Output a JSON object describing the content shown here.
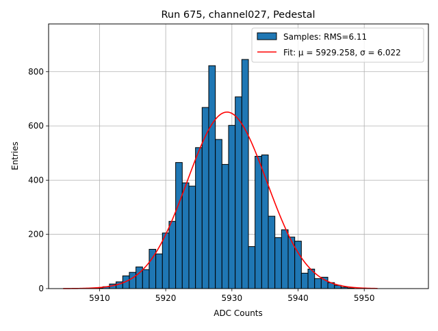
{
  "chart_data": {
    "type": "bar",
    "title": "Run 675, channel027, Pedestal",
    "xlabel": "ADC Counts",
    "ylabel": "Entries",
    "xlim": [
      5902.3,
      5959.7
    ],
    "ylim": [
      0,
      976
    ],
    "x_ticks": [
      5910,
      5920,
      5930,
      5940,
      5950
    ],
    "y_ticks": [
      0,
      200,
      400,
      600,
      800
    ],
    "grid": true,
    "legend_placement": "top-right",
    "bin_width": 1,
    "bins": [
      {
        "x": 5910,
        "value": 2
      },
      {
        "x": 5911,
        "value": 7
      },
      {
        "x": 5912,
        "value": 17
      },
      {
        "x": 5913,
        "value": 25
      },
      {
        "x": 5914,
        "value": 47
      },
      {
        "x": 5915,
        "value": 60
      },
      {
        "x": 5916,
        "value": 80
      },
      {
        "x": 5917,
        "value": 70
      },
      {
        "x": 5918,
        "value": 145
      },
      {
        "x": 5919,
        "value": 128
      },
      {
        "x": 5920,
        "value": 205
      },
      {
        "x": 5921,
        "value": 248
      },
      {
        "x": 5922,
        "value": 465
      },
      {
        "x": 5923,
        "value": 390
      },
      {
        "x": 5924,
        "value": 378
      },
      {
        "x": 5925,
        "value": 520
      },
      {
        "x": 5926,
        "value": 668
      },
      {
        "x": 5927,
        "value": 822
      },
      {
        "x": 5928,
        "value": 550
      },
      {
        "x": 5929,
        "value": 458
      },
      {
        "x": 5930,
        "value": 602
      },
      {
        "x": 5931,
        "value": 707
      },
      {
        "x": 5932,
        "value": 845
      },
      {
        "x": 5933,
        "value": 155
      },
      {
        "x": 5934,
        "value": 488
      },
      {
        "x": 5935,
        "value": 493
      },
      {
        "x": 5936,
        "value": 267
      },
      {
        "x": 5937,
        "value": 188
      },
      {
        "x": 5938,
        "value": 217
      },
      {
        "x": 5939,
        "value": 190
      },
      {
        "x": 5940,
        "value": 175
      },
      {
        "x": 5941,
        "value": 57
      },
      {
        "x": 5942,
        "value": 72
      },
      {
        "x": 5943,
        "value": 37
      },
      {
        "x": 5944,
        "value": 42
      },
      {
        "x": 5945,
        "value": 22
      },
      {
        "x": 5946,
        "value": 12
      },
      {
        "x": 5947,
        "value": 5
      },
      {
        "x": 5948,
        "value": 2
      }
    ],
    "fit": {
      "mu": 5929.258,
      "sigma": 6.022,
      "amplitude": 651,
      "x_range": [
        5904.5,
        5952
      ]
    },
    "series": [
      {
        "name": "Samples: RMS=6.11",
        "kind": "histogram",
        "color": "#1f77b4",
        "edge_color": "#000000"
      },
      {
        "name": "Fit: μ = 5929.258, σ = 6.022",
        "kind": "line",
        "color": "#ff0000"
      }
    ]
  }
}
